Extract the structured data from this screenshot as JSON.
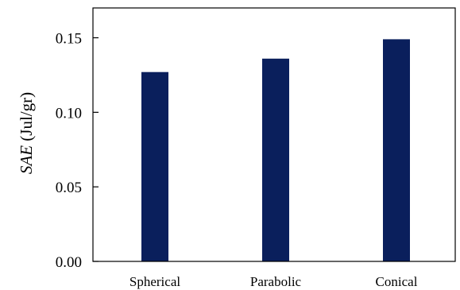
{
  "chart_data": {
    "type": "bar",
    "categories": [
      "Spherical",
      "Parabolic",
      "Conical"
    ],
    "values": [
      0.127,
      0.136,
      0.149
    ],
    "title": "",
    "xlabel": "",
    "ylabel_italic": "SAE",
    "ylabel_unit": " (Jul/gr)",
    "ylim": [
      0,
      0.17
    ],
    "yticks": [
      0.0,
      0.05,
      0.1,
      0.15
    ],
    "ytick_labels": [
      "0.00",
      "0.05",
      "0.10",
      "0.15"
    ],
    "grid": false,
    "bar_color": "#0a1f5c"
  }
}
